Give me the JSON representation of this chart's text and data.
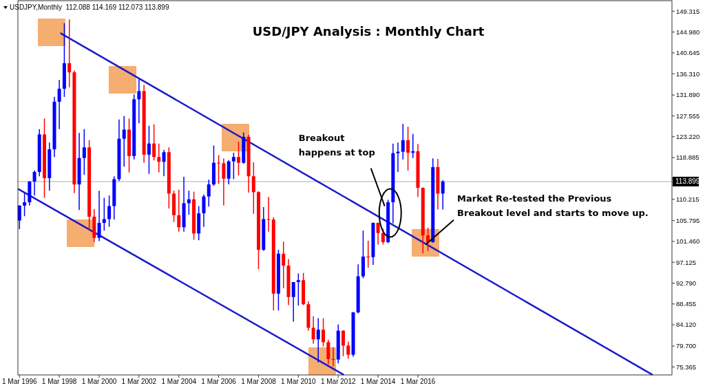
{
  "chart_data": {
    "type": "candlestick",
    "title": "USD/JPY Analysis : Monthly Chart",
    "annotations": [
      "USDJPY,Monthly  112.088 114.169 112.073 113.899",
      {
        "text": "Breakout happens at top",
        "x": "2014-07",
        "y": 108.8
      },
      {
        "text": "Market Re-tested the Previous Breakout level and starts to move up.",
        "x": "2016-08",
        "y": 100.9
      }
    ],
    "x": [
      "1996-03",
      "1996-06",
      "1996-09",
      "1996-12",
      "1997-03",
      "1997-06",
      "1997-09",
      "1997-12",
      "1998-03",
      "1998-06",
      "1998-09",
      "1998-12",
      "1999-03",
      "1999-06",
      "1999-09",
      "1999-12",
      "2000-03",
      "2000-06",
      "2000-09",
      "2000-12",
      "2001-03",
      "2001-06",
      "2001-09",
      "2001-12",
      "2002-03",
      "2002-06",
      "2002-09",
      "2002-12",
      "2003-03",
      "2003-06",
      "2003-09",
      "2003-12",
      "2004-03",
      "2004-06",
      "2004-09",
      "2004-12",
      "2005-03",
      "2005-06",
      "2005-09",
      "2005-12",
      "2006-03",
      "2006-06",
      "2006-09",
      "2006-12",
      "2007-03",
      "2007-06",
      "2007-09",
      "2007-12",
      "2008-03",
      "2008-06",
      "2008-09",
      "2008-12",
      "2009-03",
      "2009-06",
      "2009-09",
      "2009-12",
      "2010-03",
      "2010-06",
      "2010-09",
      "2010-12",
      "2011-03",
      "2011-06",
      "2011-09",
      "2011-12",
      "2012-03",
      "2012-06",
      "2012-09",
      "2012-12",
      "2013-03",
      "2013-06",
      "2013-09",
      "2013-12",
      "2014-03",
      "2014-06",
      "2014-09",
      "2014-12",
      "2015-03",
      "2015-06",
      "2015-09",
      "2015-12",
      "2016-03",
      "2016-06",
      "2016-09",
      "2016-12",
      "2017-03",
      "2017-06"
    ],
    "ohlc": [
      [
        105.8,
        109.0,
        104.0,
        108.9
      ],
      [
        108.9,
        111.5,
        106.7,
        109.6
      ],
      [
        109.6,
        114.0,
        108.9,
        113.9
      ],
      [
        113.9,
        116.2,
        111.0,
        115.9
      ],
      [
        115.9,
        124.8,
        115.0,
        123.7
      ],
      [
        123.7,
        127.0,
        110.5,
        114.6
      ],
      [
        114.6,
        122.0,
        112.0,
        120.6
      ],
      [
        120.6,
        131.5,
        119.0,
        130.5
      ],
      [
        130.5,
        135.0,
        124.8,
        133.2
      ],
      [
        133.2,
        146.8,
        131.5,
        138.5
      ],
      [
        138.5,
        147.6,
        133.5,
        136.6
      ],
      [
        136.6,
        137.0,
        111.5,
        113.3
      ],
      [
        113.3,
        124.0,
        108.0,
        118.8
      ],
      [
        118.8,
        124.8,
        115.3,
        121.0
      ],
      [
        121.0,
        122.5,
        103.7,
        106.6
      ],
      [
        106.6,
        108.2,
        101.3,
        102.2
      ],
      [
        102.2,
        112.0,
        101.5,
        105.3
      ],
      [
        105.3,
        110.5,
        103.7,
        106.1
      ],
      [
        106.1,
        111.0,
        104.5,
        108.8
      ],
      [
        108.8,
        115.0,
        106.0,
        114.4
      ],
      [
        114.4,
        126.8,
        114.0,
        122.8
      ],
      [
        122.8,
        127.5,
        117.0,
        124.7
      ],
      [
        124.7,
        127.0,
        115.8,
        119.2
      ],
      [
        119.2,
        132.0,
        118.5,
        131.0
      ],
      [
        131.0,
        135.2,
        126.0,
        132.7
      ],
      [
        132.7,
        134.0,
        117.8,
        119.5
      ],
      [
        119.5,
        125.5,
        115.5,
        121.8
      ],
      [
        121.8,
        125.8,
        118.3,
        119.0
      ],
      [
        119.0,
        121.8,
        115.8,
        118.0
      ],
      [
        118.0,
        120.5,
        115.0,
        120.0
      ],
      [
        120.0,
        121.0,
        108.3,
        111.4
      ],
      [
        111.4,
        112.0,
        105.5,
        106.9
      ],
      [
        106.9,
        112.2,
        103.5,
        104.4
      ],
      [
        104.4,
        114.9,
        103.5,
        109.4
      ],
      [
        109.4,
        112.0,
        107.0,
        110.2
      ],
      [
        110.2,
        111.8,
        101.8,
        103.1
      ],
      [
        103.1,
        108.8,
        101.7,
        107.3
      ],
      [
        107.3,
        111.2,
        104.5,
        110.8
      ],
      [
        110.8,
        114.3,
        108.7,
        113.3
      ],
      [
        113.3,
        121.4,
        113.0,
        117.8
      ],
      [
        117.8,
        119.4,
        113.4,
        117.7
      ],
      [
        117.7,
        118.7,
        108.9,
        114.5
      ],
      [
        114.5,
        118.4,
        113.3,
        118.1
      ],
      [
        118.1,
        119.9,
        114.4,
        119.0
      ],
      [
        119.0,
        122.2,
        115.2,
        117.8
      ],
      [
        117.8,
        124.1,
        117.6,
        123.2
      ],
      [
        123.2,
        123.6,
        111.6,
        115.0
      ],
      [
        115.0,
        117.9,
        107.2,
        111.7
      ],
      [
        111.7,
        111.9,
        95.7,
        99.7
      ],
      [
        99.7,
        108.6,
        99.5,
        106.1
      ],
      [
        106.1,
        110.7,
        103.5,
        106.0
      ],
      [
        106.0,
        106.5,
        87.1,
        90.6
      ],
      [
        90.6,
        99.7,
        87.1,
        98.9
      ],
      [
        98.9,
        101.4,
        91.7,
        96.4
      ],
      [
        96.4,
        97.8,
        88.2,
        89.9
      ],
      [
        89.9,
        93.0,
        84.8,
        93.0
      ],
      [
        93.0,
        94.8,
        88.1,
        93.4
      ],
      [
        93.4,
        94.9,
        88.2,
        88.4
      ],
      [
        88.4,
        89.0,
        82.9,
        83.5
      ],
      [
        83.5,
        85.9,
        80.2,
        81.1
      ],
      [
        81.1,
        85.5,
        76.3,
        83.1
      ],
      [
        83.1,
        85.5,
        79.6,
        80.5
      ],
      [
        80.5,
        81.0,
        75.9,
        77.0
      ],
      [
        77.0,
        79.5,
        75.5,
        76.9
      ],
      [
        76.9,
        84.2,
        76.1,
        82.9
      ],
      [
        82.9,
        83.0,
        77.6,
        79.8
      ],
      [
        79.8,
        80.6,
        77.1,
        77.9
      ],
      [
        77.9,
        86.8,
        77.5,
        86.7
      ],
      [
        86.7,
        96.7,
        86.5,
        94.2
      ],
      [
        94.2,
        103.7,
        93.8,
        98.3
      ],
      [
        98.3,
        101.6,
        96.0,
        98.2
      ],
      [
        98.2,
        105.4,
        96.6,
        105.3
      ],
      [
        105.3,
        105.4,
        100.8,
        103.2
      ],
      [
        103.2,
        104.1,
        100.8,
        101.3
      ],
      [
        101.3,
        110.1,
        101.1,
        109.6
      ],
      [
        109.6,
        121.8,
        105.2,
        119.8
      ],
      [
        119.8,
        122.0,
        115.9,
        120.1
      ],
      [
        120.1,
        125.9,
        118.5,
        122.5
      ],
      [
        122.5,
        125.3,
        116.2,
        119.9
      ],
      [
        119.9,
        123.8,
        118.8,
        120.2
      ],
      [
        120.2,
        121.7,
        110.7,
        112.6
      ],
      [
        112.6,
        112.7,
        99.0,
        102.7
      ],
      [
        102.7,
        104.3,
        99.5,
        101.3
      ],
      [
        101.3,
        118.7,
        101.2,
        116.9
      ],
      [
        116.9,
        118.6,
        108.1,
        111.4
      ],
      [
        111.4,
        114.2,
        108.1,
        113.9
      ]
    ],
    "colors": [
      "#0000ff",
      "#0000ff",
      "#0000ff",
      "#0000ff",
      "#0000ff",
      "#ff0000",
      "#0000ff",
      "#0000ff",
      "#0000ff",
      "#0000ff",
      "#ff0000",
      "#ff0000",
      "#0000ff",
      "#0000ff",
      "#ff0000",
      "#ff0000",
      "#0000ff",
      "#0000ff",
      "#0000ff",
      "#0000ff",
      "#0000ff",
      "#0000ff",
      "#ff0000",
      "#0000ff",
      "#0000ff",
      "#ff0000",
      "#0000ff",
      "#ff0000",
      "#ff0000",
      "#0000ff",
      "#ff0000",
      "#ff0000",
      "#ff0000",
      "#0000ff",
      "#0000ff",
      "#ff0000",
      "#0000ff",
      "#0000ff",
      "#0000ff",
      "#0000ff",
      "#ff0000",
      "#ff0000",
      "#0000ff",
      "#0000ff",
      "#ff0000",
      "#0000ff",
      "#ff0000",
      "#ff0000",
      "#ff0000",
      "#0000ff",
      "#ff0000",
      "#ff0000",
      "#0000ff",
      "#ff0000",
      "#ff0000",
      "#0000ff",
      "#0000ff",
      "#ff0000",
      "#ff0000",
      "#ff0000",
      "#0000ff",
      "#ff0000",
      "#ff0000",
      "#ff0000",
      "#0000ff",
      "#ff0000",
      "#ff0000",
      "#0000ff",
      "#0000ff",
      "#0000ff",
      "#ff0000",
      "#0000ff",
      "#ff0000",
      "#ff0000",
      "#0000ff",
      "#0000ff",
      "#0000ff",
      "#0000ff",
      "#ff0000",
      "#0000ff",
      "#ff0000",
      "#ff0000",
      "#ff0000",
      "#0000ff",
      "#ff0000",
      "#0000ff"
    ],
    "series": [
      {
        "type": "line",
        "x": [
          "1998-04",
          "2027-12"
        ],
        "values": [
          144.7,
          73.8
        ],
        "color": "#1a1acc"
      },
      {
        "type": "line",
        "x": [
          "1996-02-16",
          "2012-06"
        ],
        "values": [
          112.3,
          73.8
        ],
        "color": "#1a1acc"
      }
    ],
    "ref_lines": [
      {
        "axis": "y",
        "value": 113.899,
        "label": "113.899",
        "color": "#c0c8d0"
      }
    ],
    "xlim": [
      "1996-02",
      "2028-12"
    ],
    "xticks": [
      {
        "value": "1996-03-01",
        "label": "1 Mar 1996"
      },
      {
        "value": "1998-03-01",
        "label": "1 Mar 1998"
      },
      {
        "value": "2000-03-01",
        "label": "1 Mar 2000"
      },
      {
        "value": "2002-03-01",
        "label": "1 Mar 2002"
      },
      {
        "value": "2004-03-01",
        "label": "1 Mar 2004"
      },
      {
        "value": "2006-03-01",
        "label": "1 Mar 2006"
      },
      {
        "value": "2008-03-01",
        "label": "1 Mar 2008"
      },
      {
        "value": "2010-03-01",
        "label": "1 Mar 2010"
      },
      {
        "value": "2012-03-01",
        "label": "1 Mar 2012"
      },
      {
        "value": "2014-03-01",
        "label": "1 Mar 2014"
      },
      {
        "value": "2016-03-01",
        "label": "1 Mar 2016"
      }
    ],
    "ylim": [
      73.7,
      151.5
    ],
    "yticks": [
      {
        "value": 75.365,
        "label": "75.365"
      },
      {
        "value": 79.7,
        "label": "79.700"
      },
      {
        "value": 84.12,
        "label": "84.120"
      },
      {
        "value": 88.455,
        "label": "88.455"
      },
      {
        "value": 92.79,
        "label": "92.790"
      },
      {
        "value": 97.125,
        "label": "97.125"
      },
      {
        "value": 101.46,
        "label": "101.460"
      },
      {
        "value": 105.795,
        "label": "105.795"
      },
      {
        "value": 110.215,
        "label": "110.215"
      },
      {
        "value": 114.55,
        "label": null
      },
      {
        "value": 118.885,
        "label": "118.885"
      },
      {
        "value": 123.22,
        "label": "123.220"
      },
      {
        "value": 127.555,
        "label": "127.555"
      },
      {
        "value": 131.89,
        "label": "131.890"
      },
      {
        "value": 136.31,
        "label": "136.310"
      },
      {
        "value": 140.645,
        "label": "140.645"
      },
      {
        "value": 144.98,
        "label": "144.980"
      },
      {
        "value": 149.315,
        "label": "149.315"
      }
    ]
  }
}
